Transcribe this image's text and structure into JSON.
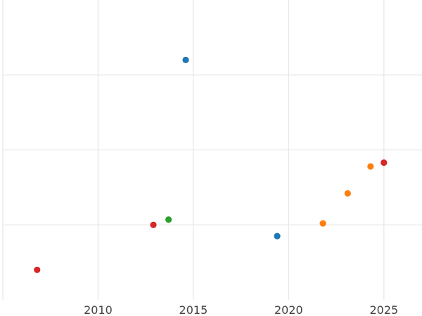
{
  "chart_data": {
    "type": "scatter",
    "title": "",
    "xlabel": "",
    "ylabel": "",
    "xlim": [
      2005,
      2027
    ],
    "ylim": [
      -1,
      3
    ],
    "x_ticks": [
      2010,
      2015,
      2020,
      2025
    ],
    "x_tick_labels": [
      "2010",
      "2015",
      "2020",
      "2025"
    ],
    "y_ticks": [
      0,
      1,
      2
    ],
    "y_tick_labels": [],
    "grid": true,
    "legend": "none",
    "points": [
      {
        "x": 2006.8,
        "y": -0.6,
        "color": "#d62728"
      },
      {
        "x": 2012.9,
        "y": 0.0,
        "color": "#d62728"
      },
      {
        "x": 2013.7,
        "y": 0.07,
        "color": "#2ca02c"
      },
      {
        "x": 2014.6,
        "y": 2.2,
        "color": "#1f77b4"
      },
      {
        "x": 2019.4,
        "y": -0.15,
        "color": "#1f77b4"
      },
      {
        "x": 2021.8,
        "y": 0.02,
        "color": "#ff7f0e"
      },
      {
        "x": 2023.1,
        "y": 0.42,
        "color": "#ff7f0e"
      },
      {
        "x": 2024.3,
        "y": 0.78,
        "color": "#ff7f0e"
      },
      {
        "x": 2025.0,
        "y": 0.83,
        "color": "#d62728"
      }
    ]
  }
}
